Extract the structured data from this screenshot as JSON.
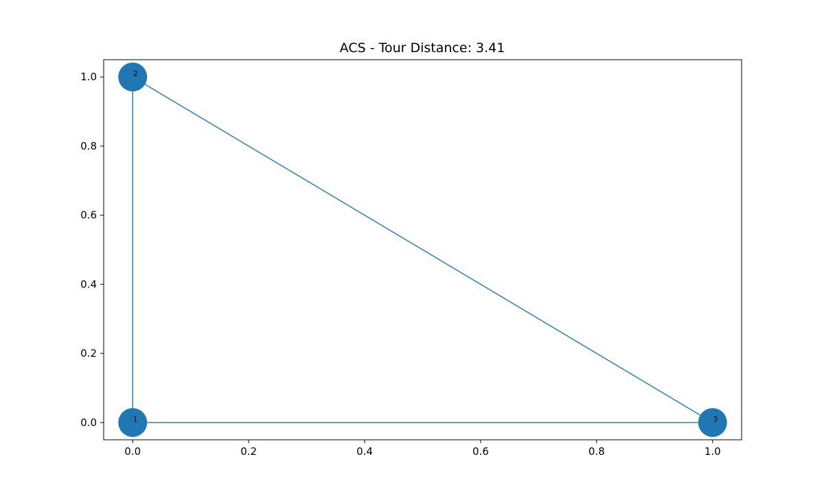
{
  "chart_data": {
    "type": "scatter",
    "title": "ACS - Tour Distance: 3.41",
    "xlabel": "",
    "ylabel": "",
    "xlim": [
      -0.05,
      1.05
    ],
    "ylim": [
      -0.05,
      1.05
    ],
    "xticks": [
      0.0,
      0.2,
      0.4,
      0.6,
      0.8,
      1.0
    ],
    "xtick_labels": [
      "0.0",
      "0.2",
      "0.4",
      "0.6",
      "0.8",
      "1.0"
    ],
    "yticks": [
      0.0,
      0.2,
      0.4,
      0.6,
      0.8,
      1.0
    ],
    "ytick_labels": [
      "0.0",
      "0.2",
      "0.4",
      "0.6",
      "0.8",
      "1.0"
    ],
    "grid": false,
    "color": "#1f77b4",
    "nodes": [
      {
        "label": "1",
        "x": 0.0,
        "y": 0.0
      },
      {
        "label": "2",
        "x": 0.0,
        "y": 1.0
      },
      {
        "label": "3",
        "x": 1.0,
        "y": 0.0
      }
    ],
    "edges": [
      {
        "from": "1",
        "to": "2"
      },
      {
        "from": "2",
        "to": "3"
      },
      {
        "from": "3",
        "to": "1"
      }
    ]
  }
}
